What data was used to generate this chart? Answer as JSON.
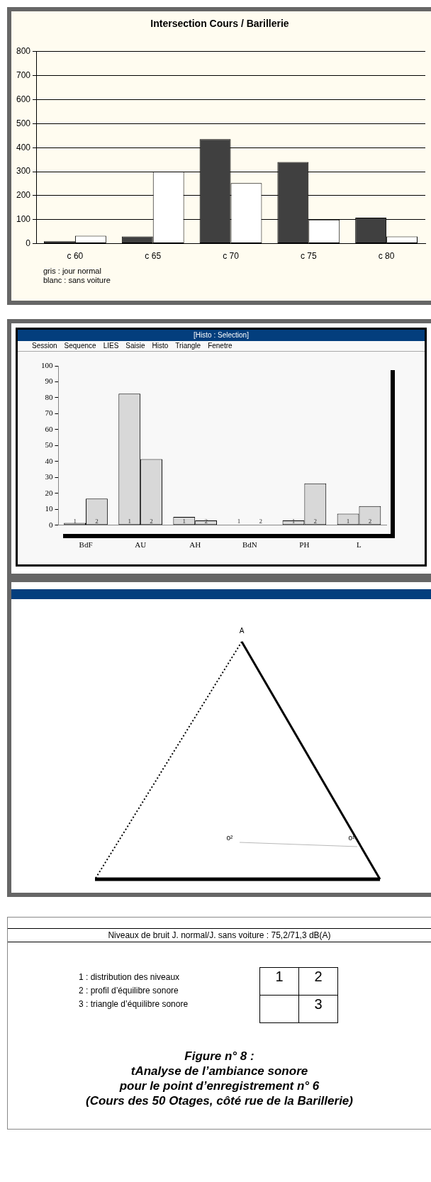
{
  "chart_data": [
    {
      "type": "bar",
      "title": "Intersection Cours / Barillerie",
      "categories": [
        "c 60",
        "c 65",
        "c 70",
        "c 75",
        "c 80"
      ],
      "series": [
        {
          "color": "#404040",
          "values": [
            10,
            30,
            435,
            340,
            108
          ]
        },
        {
          "color": "#ffffff",
          "values": [
            33,
            300,
            252,
            100,
            30
          ]
        }
      ],
      "ylim": [
        0,
        800
      ],
      "yticks": [
        0,
        100,
        200,
        300,
        400,
        500,
        600,
        700,
        800
      ],
      "grid": "y",
      "legend": false,
      "annotations": [
        "gris : jour normal",
        "blanc : sans voiture"
      ]
    },
    {
      "type": "bar",
      "title": "[Histo : Selection]",
      "categories": [
        "BdF",
        "AU",
        "AH",
        "BdN",
        "PH",
        "L"
      ],
      "series": [
        {
          "name": "1",
          "color": "#d8d8d8",
          "values": [
            1.5,
            82.5,
            5.3,
            0,
            3,
            7.3
          ]
        },
        {
          "name": "2",
          "color": "#d8d8d8",
          "values": [
            16.7,
            41.5,
            3,
            0,
            26.3,
            12
          ]
        }
      ],
      "ylim": [
        0,
        100
      ],
      "yticks": [
        0,
        10,
        20,
        30,
        40,
        50,
        60,
        70,
        80,
        90,
        100
      ],
      "grid": false,
      "legend": false,
      "annotations": [
        "Session",
        "Sequence",
        "LIES",
        "Saisie",
        "Histo",
        "Triangle",
        "Fenetre"
      ]
    },
    {
      "type": "other",
      "annotations": [
        "A",
        "o²",
        "o¹"
      ]
    },
    {
      "type": "other",
      "subtitle": "Niveaux de bruit J. normal/J. sans voiture : 75,2/71,3 dB(A)",
      "title": "Figure n° 8 :\ntAnalyse de l’ambiance sonore\npour le point d’enregistrement n° 6\n(Cours des 50 Otages, côté rue de la Barillerie)",
      "annotations": [
        "1 : distribution des niveaux",
        "2 : profil d’équilibre sonore",
        "3 : triangle d’équilibre sonore",
        "1",
        "2",
        "3"
      ]
    }
  ]
}
